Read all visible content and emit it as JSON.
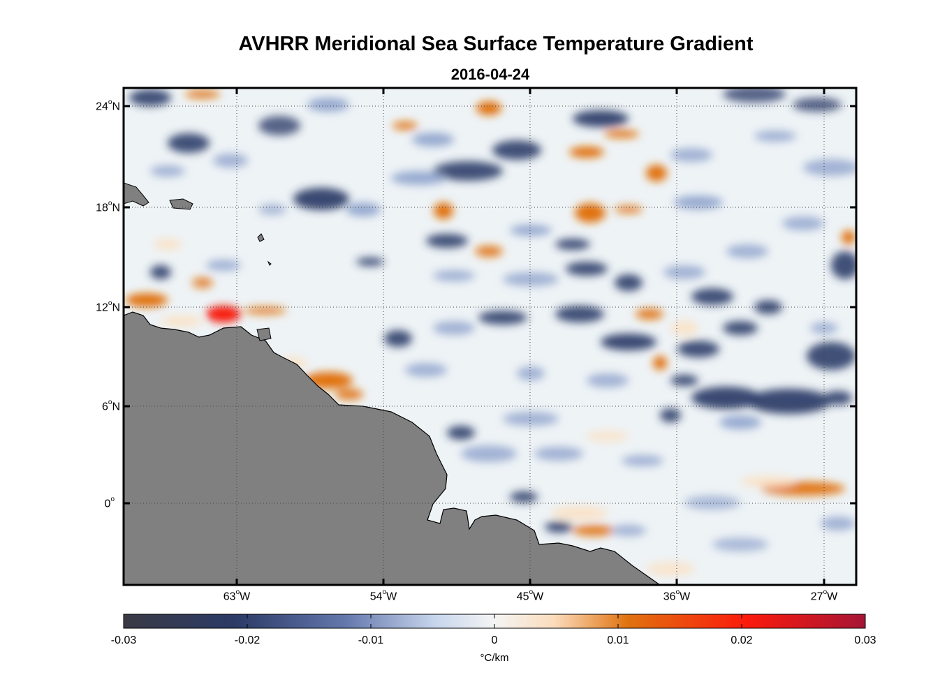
{
  "title": "AVHRR Meridional Sea Surface Temperature Gradient",
  "subtitle": "2016-04-24",
  "lat_labels": [
    {
      "deg": "24",
      "hemi": "N"
    },
    {
      "deg": "18",
      "hemi": "N"
    },
    {
      "deg": "12",
      "hemi": "N"
    },
    {
      "deg": "6",
      "hemi": "N"
    },
    {
      "deg": "0",
      "hemi": ""
    }
  ],
  "lon_labels": [
    {
      "deg": "63",
      "hemi": "W"
    },
    {
      "deg": "54",
      "hemi": "W"
    },
    {
      "deg": "45",
      "hemi": "W"
    },
    {
      "deg": "36",
      "hemi": "W"
    },
    {
      "deg": "27",
      "hemi": "W"
    }
  ],
  "colorbar": {
    "ticks": [
      "-0.03",
      "-0.02",
      "-0.01",
      "0",
      "0.01",
      "0.02",
      "0.03"
    ],
    "unit": "°C/km"
  },
  "colors": {
    "land": "#808080",
    "neg_strong": "#3a3a45",
    "neg": "#2e3f6a",
    "neg_light": "#8ea3cc",
    "zero": "#eef3f6",
    "pos_light": "#fbe1c4",
    "pos": "#e0720f",
    "pos_strong": "#f61d0c",
    "pos_max": "#a61535"
  }
}
